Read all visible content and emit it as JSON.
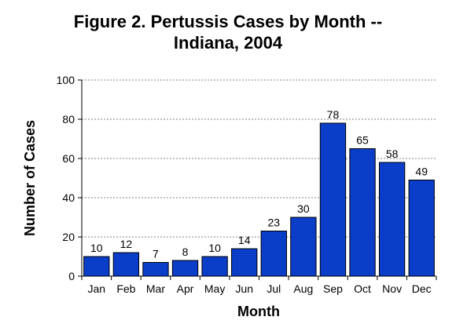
{
  "chart_data": {
    "type": "bar",
    "title_line1": "Figure 2.  Pertussis Cases by Month --",
    "title_line2": "Indiana, 2004",
    "xlabel": "Month",
    "ylabel": "Number of Cases",
    "categories": [
      "Jan",
      "Feb",
      "Mar",
      "Apr",
      "May",
      "Jun",
      "Jul",
      "Aug",
      "Sep",
      "Oct",
      "Nov",
      "Dec"
    ],
    "values": [
      10,
      12,
      7,
      8,
      10,
      14,
      23,
      30,
      78,
      65,
      58,
      49
    ],
    "yticks": [
      0,
      20,
      40,
      60,
      80,
      100
    ],
    "ylim": [
      0,
      100
    ],
    "grid": "horizontal dotted",
    "bar_color": "#0a3dc8",
    "bar_edge_color": "#000000",
    "grid_color": "#808080"
  }
}
